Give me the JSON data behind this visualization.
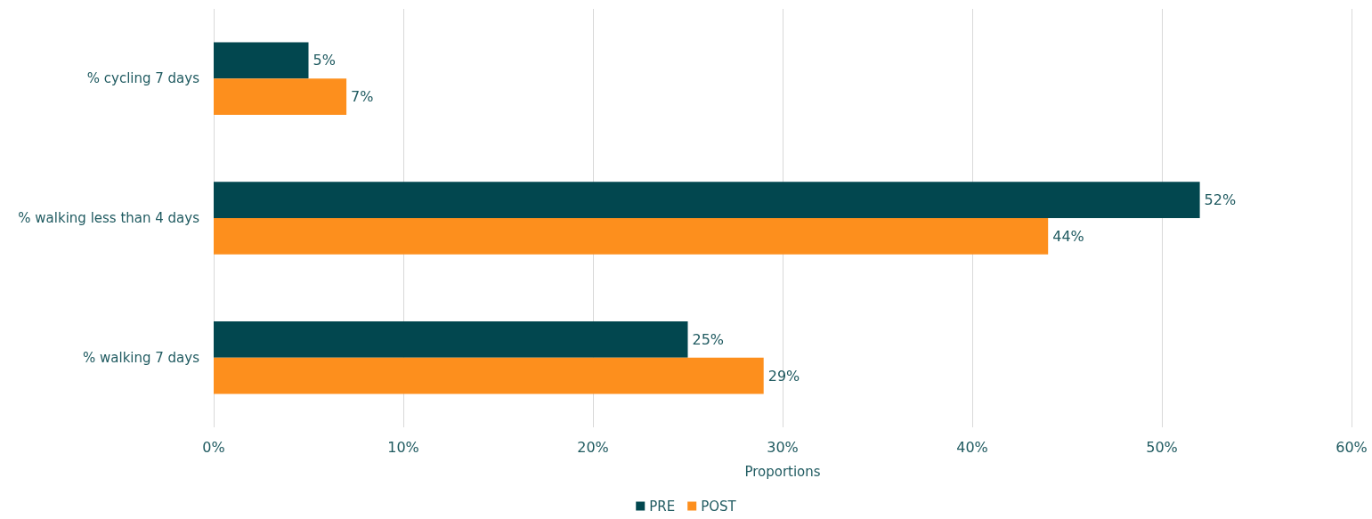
{
  "chart_data": {
    "type": "bar",
    "orientation": "horizontal",
    "xlabel": "Proportions",
    "categories": [
      "% cycling 7 days",
      "% walking less than 4 days",
      "% walking 7 days"
    ],
    "series": [
      {
        "name": "PRE",
        "color": "#02474f",
        "values": [
          5,
          52,
          25
        ],
        "value_labels": [
          "5%",
          "52%",
          "25%"
        ]
      },
      {
        "name": "POST",
        "color": "#fd8f1d",
        "values": [
          7,
          44,
          29
        ],
        "value_labels": [
          "7%",
          "44%",
          "29%"
        ]
      }
    ],
    "xlim": [
      0,
      60
    ],
    "xticks": [
      {
        "value": 0,
        "label": "0%"
      },
      {
        "value": 10,
        "label": "10%"
      },
      {
        "value": 20,
        "label": "20%"
      },
      {
        "value": 30,
        "label": "30%"
      },
      {
        "value": 40,
        "label": "40%"
      },
      {
        "value": 50,
        "label": "50%"
      },
      {
        "value": 60,
        "label": "60%"
      }
    ],
    "grid": "x",
    "legend": "bottom"
  }
}
